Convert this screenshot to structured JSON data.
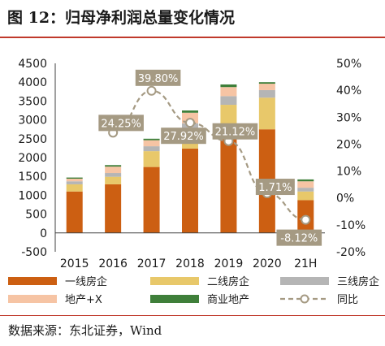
{
  "header": {
    "title": "图 12：归母净利润总量变化情况"
  },
  "footer": {
    "source": "数据来源：东北证券，Wind"
  },
  "colors": {
    "tier1": "#CC5F12",
    "tier2": "#E8C86A",
    "tier3": "#B5B5B5",
    "plus": "#F6C4A4",
    "commercial": "#3F7F3A",
    "yoy": "#A59A83",
    "yoy_label_bg": "#A59A83",
    "accent": "#C0392B"
  },
  "chart_data": {
    "type": "bar",
    "stacked": true,
    "categories": [
      "2015",
      "2016",
      "2017",
      "2018",
      "2019",
      "2020",
      "21H"
    ],
    "series": [
      {
        "name": "一线房企",
        "color_key": "tier1",
        "values": [
          1100,
          1290,
          1750,
          2240,
          2620,
          2750,
          870
        ]
      },
      {
        "name": "二线房企",
        "color_key": "tier2",
        "values": [
          190,
          200,
          420,
          480,
          780,
          840,
          230
        ]
      },
      {
        "name": "三线房企",
        "color_key": "tier3",
        "values": [
          80,
          100,
          130,
          190,
          230,
          200,
          100
        ]
      },
      {
        "name": "地产+X",
        "color_key": "plus",
        "values": [
          70,
          170,
          160,
          280,
          240,
          170,
          170
        ]
      },
      {
        "name": "商业地产",
        "color_key": "commercial",
        "values": [
          30,
          40,
          40,
          60,
          70,
          40,
          50
        ]
      }
    ],
    "line": {
      "name": "同比",
      "axis": "right",
      "values": [
        null,
        24.25,
        39.8,
        27.92,
        21.12,
        1.71,
        -8.12
      ],
      "labels": [
        null,
        "24.25%",
        "39.80%",
        "27.92%",
        "21.12%",
        "1.71%",
        "-8.12%"
      ]
    },
    "y_left": {
      "ylim": [
        -500,
        4500
      ],
      "ticks": [
        "4500",
        "4000",
        "3500",
        "3000",
        "2500",
        "2000",
        "1500",
        "1000",
        "500",
        "0",
        "-500"
      ]
    },
    "y_right": {
      "ylim": [
        -20,
        50
      ],
      "ticks": [
        "50%",
        "40%",
        "30%",
        "20%",
        "10%",
        "0%",
        "-10%",
        "-20%"
      ]
    },
    "grid": false,
    "legend_position": "bottom"
  }
}
